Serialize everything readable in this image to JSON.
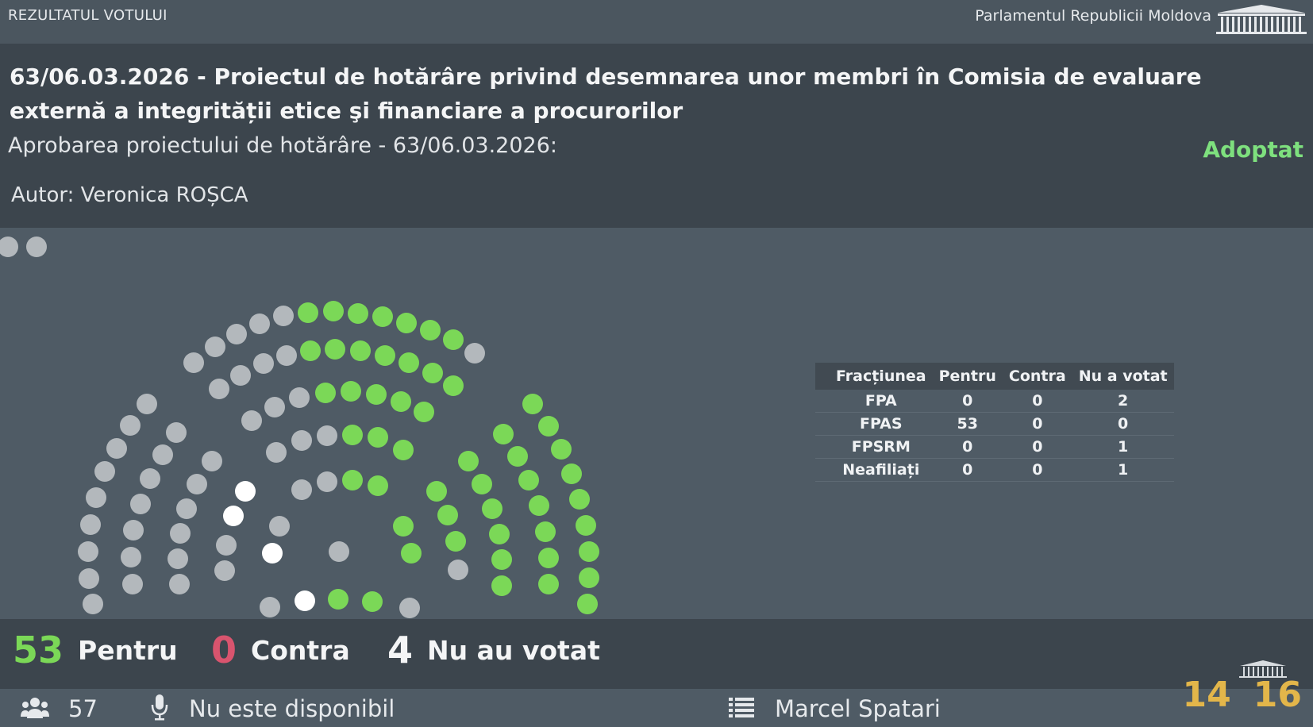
{
  "topbar": {
    "left_label": "REZULTATUL VOTULUI",
    "right_label": "Parlamentul Republicii Moldova",
    "logo_icon": "parliament-building-icon"
  },
  "header": {
    "title": "63/06.03.2026 - Proiectul de hotărâre privind desemnarea unor membri în Comisia de evaluare externă a integrității etice şi financiare a procurorilor",
    "subtitle": "Aprobarea proiectului de hotărâre - 63/06.03.2026:",
    "status": "Adoptat",
    "author": "Autor: Veronica ROȘCA"
  },
  "colors": {
    "pentru": "#7bd857",
    "contra": "#d9546e",
    "not_voted": "#b3b8bc",
    "absent_white": "#ffffff",
    "status_green": "#7ee07e",
    "clock": "#e3b64a"
  },
  "factions_table": {
    "headers": [
      "Fracțiunea",
      "Pentru",
      "Contra",
      "Nu a votat"
    ],
    "rows": [
      [
        "FPA",
        "0",
        "0",
        "2"
      ],
      [
        "FPAS",
        "53",
        "0",
        "0"
      ],
      [
        "FPSRM",
        "0",
        "0",
        "1"
      ],
      [
        "Neafiliați",
        "0",
        "0",
        "1"
      ]
    ]
  },
  "summary": {
    "pentru_count": "53",
    "pentru_label": "Pentru",
    "contra_count": "0",
    "contra_label": "Contra",
    "not_voted_count": "4",
    "not_voted_label": "Nu au votat"
  },
  "footer": {
    "present_count": "57",
    "present_icon": "people-icon",
    "mic_icon": "microphone-icon",
    "mic_status": "Nu este disponibil",
    "list_icon": "list-icon",
    "speaker_name": "Marcel Spatari",
    "clock_hours": "14",
    "clock_minutes": "16"
  }
}
